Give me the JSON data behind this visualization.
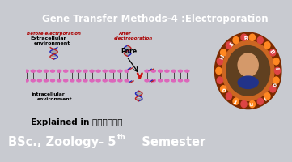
{
  "title": "Gene Transfer Methods-4 :Electroporation",
  "title_bg": "#8B3A10",
  "title_color": "white",
  "main_bg": "#C8CAD0",
  "bottom_bar_text": "BSc., Zoology- 5",
  "bottom_bar_sup": "th",
  "bottom_bar_text2": "   Semester",
  "bottom_bar_bg": "#C06020",
  "bottom_bar_color": "white",
  "explained_text": "Explained in తెలుగు",
  "explained_bg": "#B8C0CC",
  "before_label1": "Before electrporation",
  "before_label2": "Extracellular",
  "before_label3": "environment",
  "after_label1": "After",
  "after_label2": "electroporation",
  "pore_label": "Pore",
  "intra_label1": "Intracellular",
  "intra_label2": "environment",
  "membrane_color": "#DD66BB",
  "dna_color1": "#2222BB",
  "dna_color2": "#BB2222",
  "arrow_color": "#CC1111",
  "logo_outer": "#7B2A00",
  "logo_mid": "#CC6622",
  "logo_inner": "#AA8855",
  "logo_dot": "#DD4444"
}
